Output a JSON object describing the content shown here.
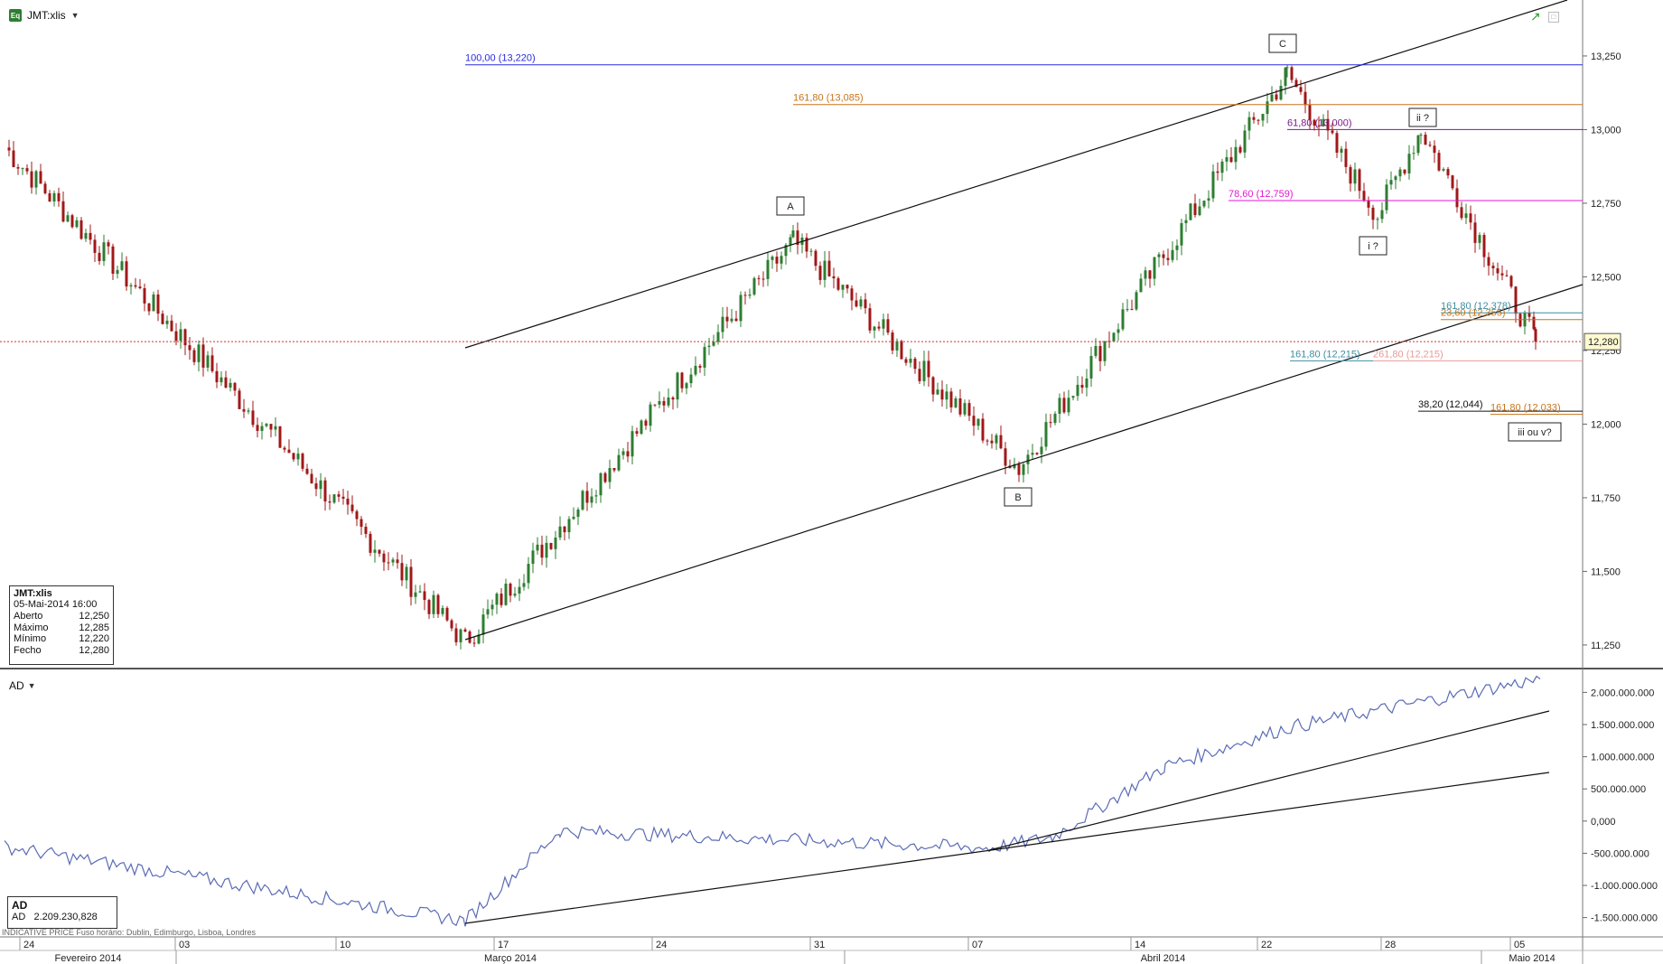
{
  "instrument": {
    "symbol": "JMT:xlis"
  },
  "ohlc_panel": {
    "symbol": "JMT:xlis",
    "datetime": "05-Mai-2014 16:00",
    "rows": [
      {
        "label": "Aberto",
        "value": "12,250"
      },
      {
        "label": "Máximo",
        "value": "12,285"
      },
      {
        "label": "Mínimo",
        "value": "12,220"
      },
      {
        "label": "Fecho",
        "value": "12,280"
      }
    ]
  },
  "ad_panel": {
    "title": "AD",
    "name": "AD",
    "value": "2.209.230,828"
  },
  "footer_note": "INDICATIVE PRICE   Fuso horário: Dublin, Edimburgo, Lisboa, Londres",
  "current_price_label": "12,280",
  "colors": {
    "up": "#2e7d32",
    "down": "#a01818",
    "ad_line": "#5b6bb5",
    "fib_blue": "#2a2ae0",
    "fib_orange": "#c8741a",
    "fib_purple": "#7a1a8a",
    "fib_magenta": "#e01ad0",
    "fib_teal": "#3f8fa0",
    "fib_pink": "#e89a9a",
    "price_line": "#d43030"
  },
  "chart_data": [
    {
      "type": "candlestick",
      "title": "JMT:xlis",
      "ylim": [
        11170,
        13440
      ],
      "y_ticks": [
        "11,250",
        "11,500",
        "11,750",
        "12,000",
        "12,250",
        "12,500",
        "12,750",
        "13,000",
        "13,250"
      ],
      "x_ticks_days": [
        "24",
        "03",
        "10",
        "17",
        "24",
        "31",
        "07",
        "14",
        "22",
        "28",
        "05"
      ],
      "x_ticks_months": [
        "Fevereiro 2014",
        "Março 2014",
        "Abril 2014",
        "Maio 2014"
      ],
      "key_points": [
        {
          "label": "start",
          "price": 12940
        },
        {
          "label": "low",
          "price": 11260
        },
        {
          "label": "A",
          "price": 12620
        },
        {
          "label": "B",
          "price": 11850
        },
        {
          "label": "C",
          "price": 13190
        },
        {
          "label": "i ?",
          "price": 12710
        },
        {
          "label": "ii ?",
          "price": 13000
        },
        {
          "label": "last",
          "price": 12280
        }
      ],
      "wave_labels": [
        "A",
        "B",
        "C",
        "i ?",
        "ii ?",
        "iii ou v?"
      ],
      "fib_levels": [
        {
          "text": "100,00 (13,220)",
          "price": 13220,
          "color": "blue"
        },
        {
          "text": "161,80 (13,085)",
          "price": 13085,
          "color": "orange"
        },
        {
          "text": "61,80 (13,000)",
          "price": 13000,
          "color": "purple"
        },
        {
          "text": "78,60 (12,759)",
          "price": 12759,
          "color": "magenta"
        },
        {
          "text": "161,80 (12,378)",
          "price": 12378,
          "color": "teal"
        },
        {
          "text": "23,60 (12,355)",
          "price": 12355,
          "color": "orange"
        },
        {
          "text": "161,80 (12,215)",
          "price": 12215,
          "color": "teal"
        },
        {
          "text": "261,80 (12,215)",
          "price": 12215,
          "color": "pink"
        },
        {
          "text": "38,20 (12,044)",
          "price": 12044,
          "color": "black"
        },
        {
          "text": "161,80 (12,033)",
          "price": 12033,
          "color": "orange"
        }
      ],
      "last_price": 12280
    },
    {
      "type": "line",
      "title": "AD",
      "ylim": [
        -1800000000,
        2300000000
      ],
      "y_ticks": [
        "2.000.000.000",
        "1.500.000.000",
        "1.000.000.000",
        "500.000.000",
        "0,000",
        "-500.000.000",
        "-1.000.000.000",
        "-1.500.000.000"
      ],
      "key_points": [
        {
          "label": "start",
          "value": -400000000
        },
        {
          "label": "low",
          "value": -1550000000
        },
        {
          "label": "mid",
          "value": -150000000
        },
        {
          "label": "dip",
          "value": -420000000
        },
        {
          "label": "mar-end",
          "value": -250000000
        },
        {
          "label": "apr",
          "value": 850000000
        },
        {
          "label": "apr-high",
          "value": 1450000000
        },
        {
          "label": "last",
          "value": 2209230828
        }
      ]
    }
  ]
}
